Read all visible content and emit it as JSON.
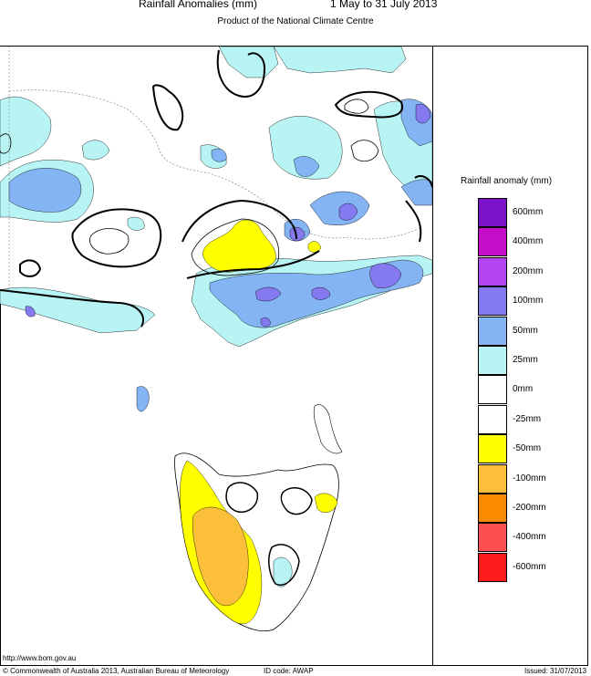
{
  "header": {
    "title": "Rainfall Anomalies (mm)",
    "period": "1 May to 31 July 2013",
    "subtitle": "Product of the National Climate Centre"
  },
  "legend": {
    "title": "Rainfall anomaly (mm)",
    "items": [
      {
        "label": "600mm",
        "color": "#7a12c8"
      },
      {
        "label": "400mm",
        "color": "#c40ec8"
      },
      {
        "label": "200mm",
        "color": "#b444f4"
      },
      {
        "label": "100mm",
        "color": "#8479ef"
      },
      {
        "label": "50mm",
        "color": "#85b4f4"
      },
      {
        "label": "25mm",
        "color": "#b9f4f4"
      },
      {
        "label": "0mm",
        "color": "#ffffff"
      },
      {
        "label": "-25mm",
        "color": "#ffffff"
      },
      {
        "label": "-50mm",
        "color": "#ffff00"
      },
      {
        "label": "-100mm",
        "color": "#fbbf3a"
      },
      {
        "label": "-200mm",
        "color": "#fc8a00"
      },
      {
        "label": "-400mm",
        "color": "#fc4f4f"
      },
      {
        "label": "-600mm",
        "color": "#fc1c1c"
      }
    ]
  },
  "footer": {
    "url": "http://www.bom.gov.au",
    "copyright": "© Commonwealth of Australia 2013, Australian Bureau of Meteorology",
    "id_code": "ID code: AWAP",
    "issued": "Issued: 31/07/2013"
  }
}
